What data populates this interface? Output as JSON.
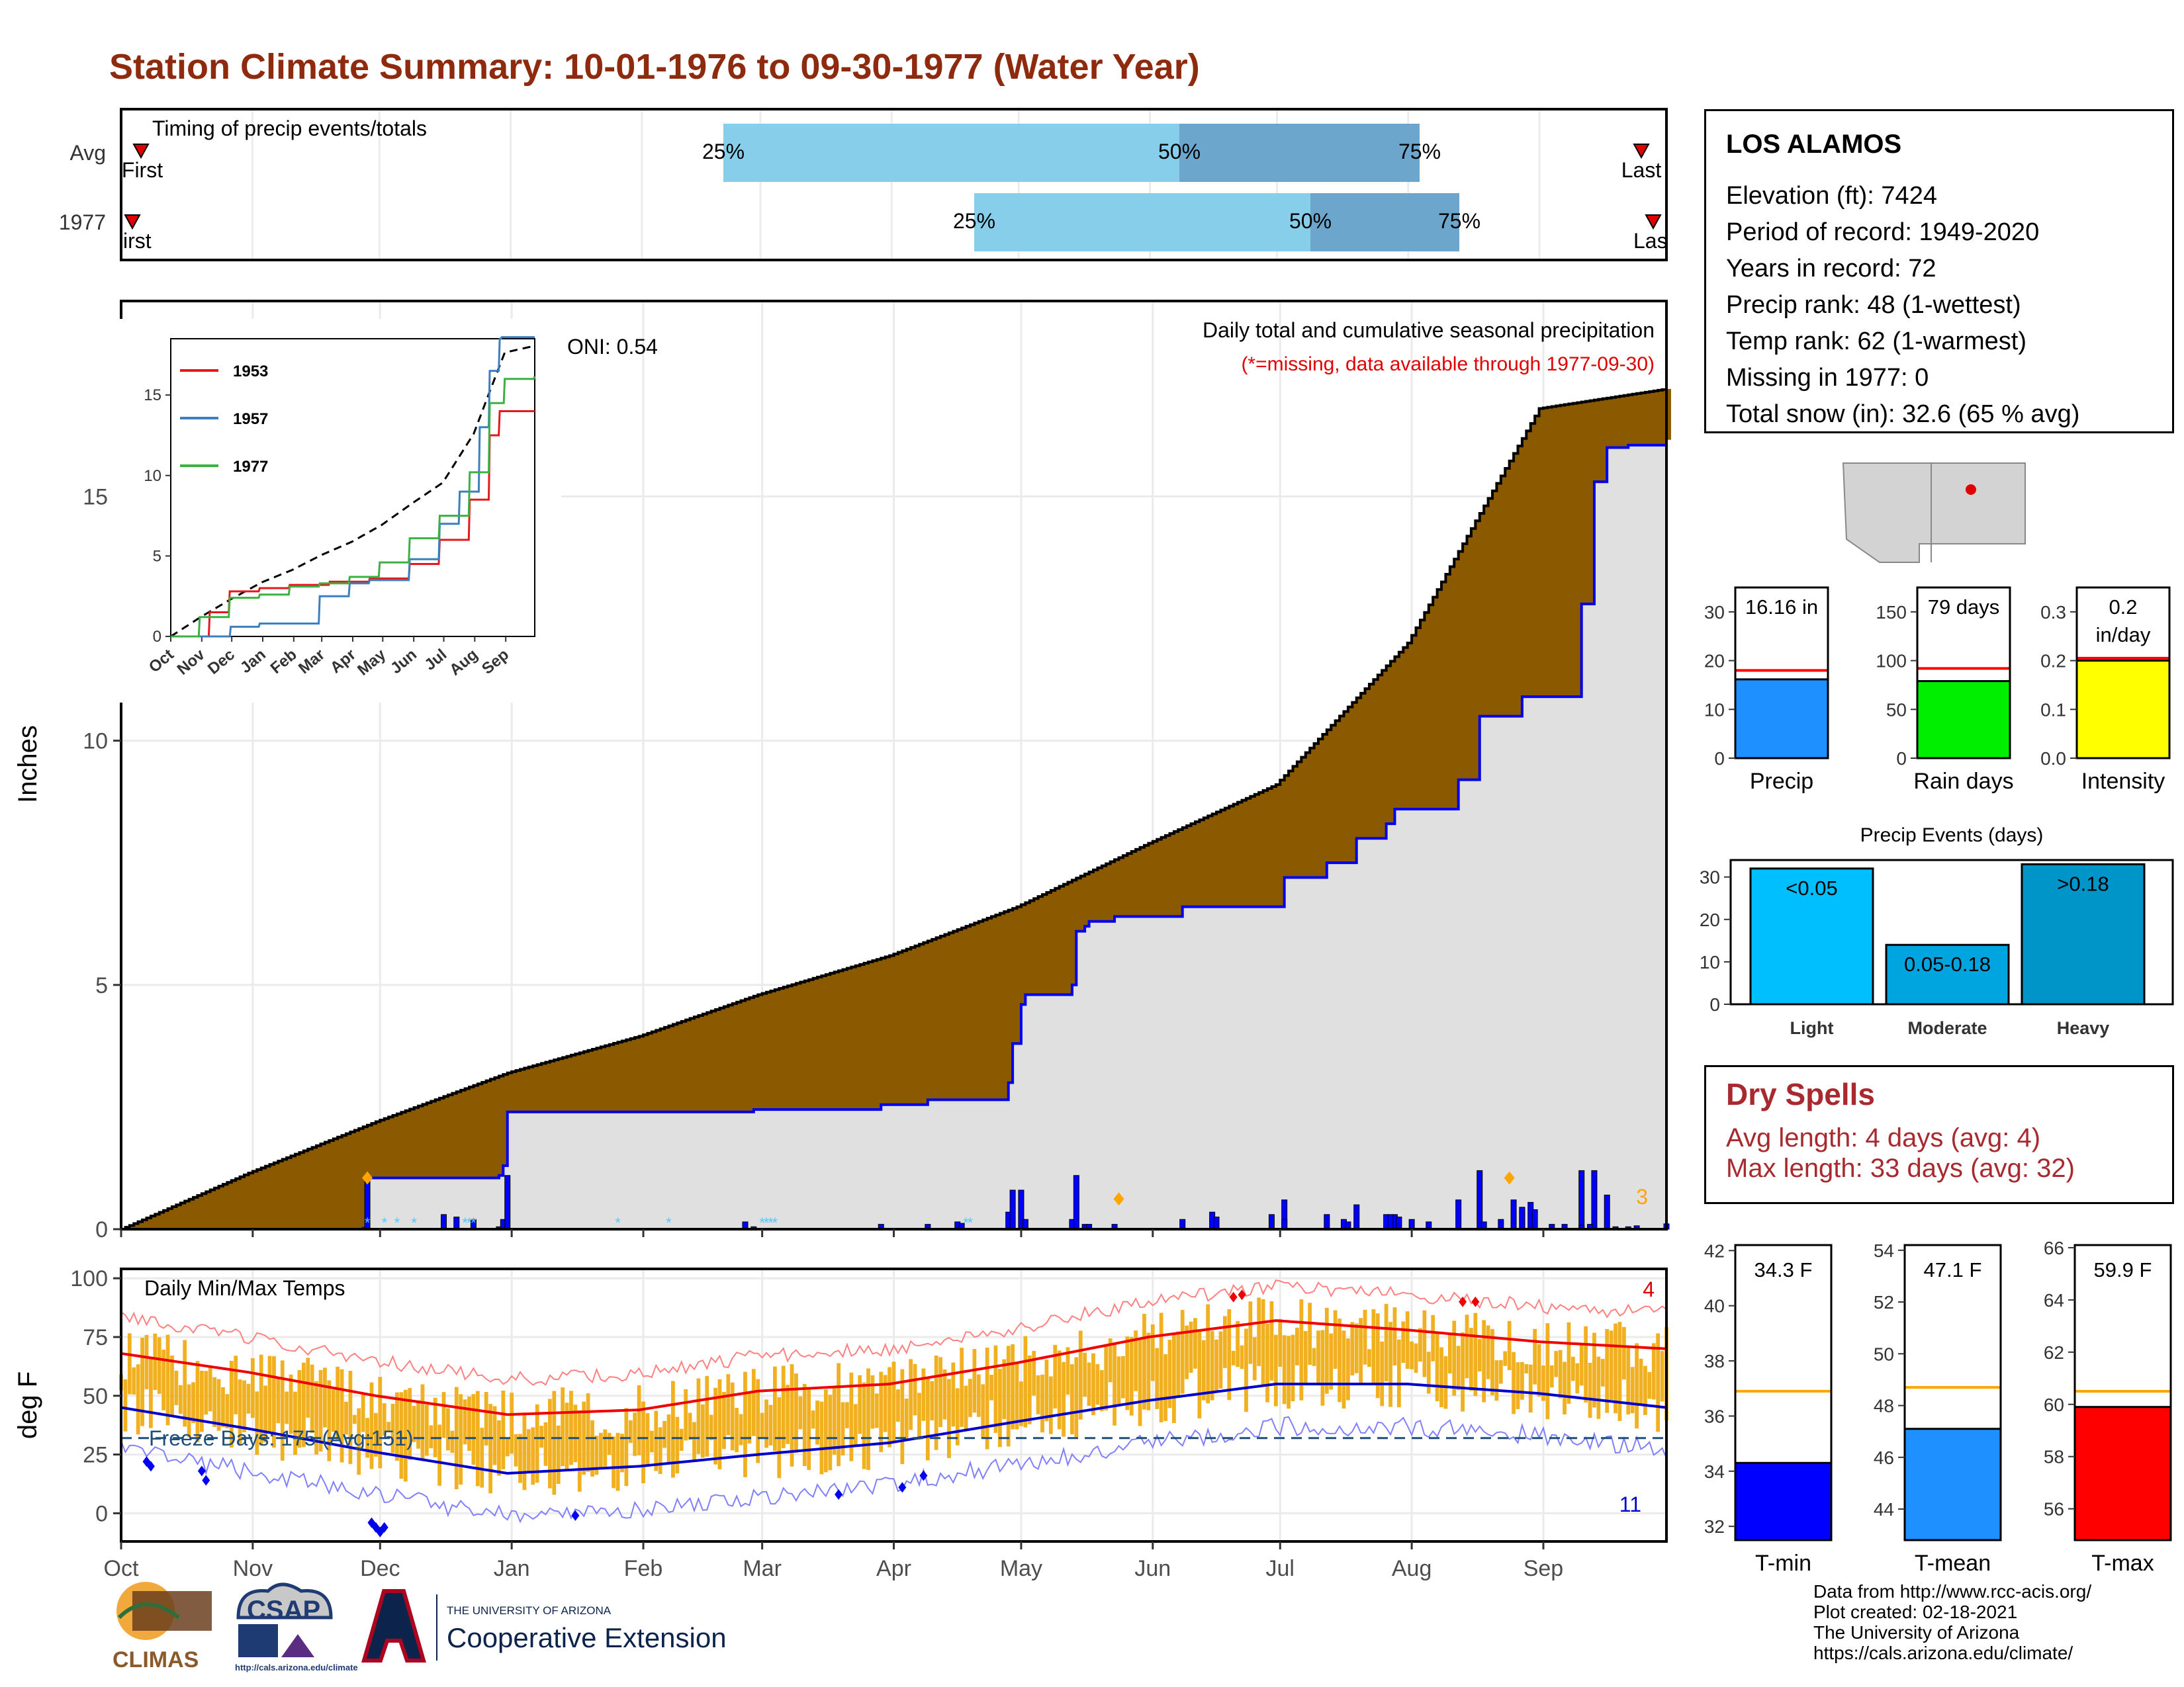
{
  "title": "Station Climate Summary: 10-01-1976 to 09-30-1977 (Water Year)",
  "station": {
    "name": "LOS ALAMOS",
    "lines": [
      "Elevation (ft): 7424",
      "Period of record: 1949-2020",
      "Years in record: 72",
      "Precip rank: 48 (1-wettest)",
      "Temp rank: 62 (1-warmest)",
      "Missing in 1977: 0",
      "Total snow (in): 32.6 (65 % avg)"
    ]
  },
  "timing_panel": {
    "title": "Timing of precip events/totals",
    "row_labels": [
      "Avg",
      "1977"
    ],
    "pct_labels": [
      "25%",
      "50%",
      "75%"
    ],
    "first_labels": [
      "First",
      "irst"
    ],
    "last_labels": [
      "Last",
      "Las"
    ],
    "colors": {
      "light": "#87ceeb",
      "dark": "#6ca6cd",
      "marker": "#e00000"
    }
  },
  "main_panel": {
    "ylabel": "Inches",
    "yticks": [
      "0",
      "5",
      "10",
      "15"
    ],
    "months": [
      "Oct",
      "Nov",
      "Dec",
      "Jan",
      "Feb",
      "Mar",
      "Apr",
      "May",
      "Jun",
      "Jul",
      "Aug",
      "Sep"
    ],
    "caption": "Daily total and cumulative seasonal precipitation",
    "missing_note": "(*=missing, data available through 1977-09-30)",
    "oni": "ONI: 0.54",
    "corner_count": "3",
    "colors": {
      "deficit": "#8b5a00",
      "surplus": "#1a7a1a",
      "area": "#e0e0e0",
      "line": "#0000ee",
      "avg": "#000000",
      "extreme": "#ffa500"
    }
  },
  "inset": {
    "legend": [
      "1953",
      "1957",
      "1977"
    ],
    "colors": [
      "#e31a1c",
      "#3b7fbf",
      "#3cb043"
    ],
    "yticks": [
      "0",
      "5",
      "10",
      "15"
    ],
    "months": [
      "Oct",
      "Nov",
      "Dec",
      "Jan",
      "Feb",
      "Mar",
      "Apr",
      "May",
      "Jun",
      "Jul",
      "Aug",
      "Sep"
    ]
  },
  "temp_panel": {
    "title": "Daily Min/Max Temps",
    "ylabel": "deg F",
    "yticks": [
      "0",
      "25",
      "50",
      "75",
      "100"
    ],
    "freeze": "Freeze Days: 175 (Avg:151)",
    "count_high": "4",
    "count_low": "11",
    "colors": {
      "bars": "#f0b020",
      "max": "#ee0000",
      "min": "#0000cc",
      "freeze": "#1f4e79"
    }
  },
  "summary_bars": {
    "precip": {
      "label": "Precip",
      "value_text": "16.16 in",
      "value": 16.16,
      "avg": 18,
      "ymax": 35,
      "yticks": [
        "0",
        "10",
        "20",
        "30"
      ],
      "color": "#1e90ff"
    },
    "rain_days": {
      "label": "Rain days",
      "value_text": "79 days",
      "value": 79,
      "avg": 92,
      "ymax": 175,
      "yticks": [
        "0",
        "50",
        "100",
        "150"
      ],
      "color": "#00ee00"
    },
    "intensity": {
      "label": "Intensity",
      "value_text": "0.2",
      "value_text2": "in/day",
      "value": 0.2,
      "avg": 0.205,
      "ymax": 0.35,
      "yticks": [
        "0.0",
        "0.1",
        "0.2",
        "0.3"
      ],
      "color": "#ffff00"
    }
  },
  "events": {
    "title": "Precip Events (days)",
    "categories": [
      "Light",
      "Moderate",
      "Heavy"
    ],
    "labels": [
      "<0.05",
      "0.05-0.18",
      ">0.18"
    ],
    "values": [
      32,
      14,
      33
    ],
    "yticks": [
      "0",
      "10",
      "20",
      "30"
    ],
    "colors": [
      "#00bfff",
      "#00a5e0",
      "#0095c8"
    ]
  },
  "dry_spells": {
    "title": "Dry Spells",
    "avg_length": "Avg length: 4 days (avg: 4)",
    "max_length": "Max length: 33 days (avg: 32)"
  },
  "temp_bars": {
    "tmin": {
      "label": "T-min",
      "value_text": "34.3 F",
      "value": 34.3,
      "avg": 36.9,
      "ymin": 31.5,
      "ymax": 42.2,
      "yticks": [
        "32",
        "34",
        "36",
        "38",
        "40",
        "42"
      ],
      "color": "#0000ff"
    },
    "tmean": {
      "label": "T-mean",
      "value_text": "47.1 F",
      "value": 47.1,
      "avg": 48.7,
      "ymin": 42.8,
      "ymax": 54.2,
      "yticks": [
        "44",
        "46",
        "48",
        "50",
        "52",
        "54"
      ],
      "color": "#1e90ff"
    },
    "tmax": {
      "label": "T-max",
      "value_text": "59.9 F",
      "value": 59.9,
      "avg": 60.5,
      "ymin": 54.8,
      "ymax": 66.1,
      "yticks": [
        "56",
        "58",
        "60",
        "62",
        "64",
        "66"
      ],
      "color": "#ff0000"
    }
  },
  "credits": [
    "Data from http://www.rcc-acis.org/",
    "Plot created: 02-18-2021",
    "The University of Arizona",
    "https://cals.arizona.edu/climate/"
  ],
  "logos": {
    "climas": "CLIMAS",
    "csap": "CSAP",
    "csap_url": "http://cals.arizona.edu/climate",
    "ua_small": "THE UNIVERSITY OF ARIZONA",
    "ua_big": "Cooperative Extension"
  },
  "chart_data": [
    {
      "type": "area",
      "title": "Daily total and cumulative seasonal precipitation",
      "ylabel": "Inches",
      "ylim": [
        0,
        19
      ],
      "x_unit": "day of water year",
      "series": [
        {
          "name": "cumulative",
          "x": [
            1,
            58,
            59,
            90,
            91,
            92,
            150,
            180,
            190,
            191,
            210,
            211,
            213,
            214,
            225,
            226,
            228,
            229,
            235,
            251,
            275,
            285,
            292,
            299,
            301,
            316,
            321,
            331,
            345,
            348,
            351,
            356,
            365
          ],
          "y": [
            0,
            0.02,
            1.05,
            1.1,
            1.3,
            2.4,
            2.45,
            2.55,
            2.55,
            2.65,
            3.0,
            3.8,
            4.6,
            4.8,
            5.0,
            6.1,
            6.2,
            6.3,
            6.4,
            6.6,
            7.2,
            7.5,
            8.0,
            8.3,
            8.6,
            9.2,
            10.5,
            10.9,
            12.8,
            15.3,
            16.0,
            16.05,
            16.16
          ]
        },
        {
          "x": [
            1,
            31,
            61,
            92,
            123,
            151,
            182,
            212,
            243,
            273,
            304,
            320,
            335,
            365
          ],
          "y": [
            0,
            1.15,
            2.2,
            3.2,
            3.95,
            4.8,
            5.6,
            6.6,
            7.9,
            9.1,
            12.0,
            14.5,
            16.8,
            17.2
          ]
        }
      ]
    },
    {
      "type": "bar",
      "title": "Precip Events (days)",
      "categories": [
        "Light",
        "Moderate",
        "Heavy"
      ],
      "values": [
        32,
        14,
        33
      ]
    },
    {
      "type": "bar",
      "categories": [
        "Precip",
        "Rain days",
        "Intensity"
      ],
      "values": [
        16.16,
        79,
        0.2
      ]
    },
    {
      "type": "bar",
      "categories": [
        "T-min",
        "T-mean",
        "T-max"
      ],
      "values": [
        34.3,
        47.1,
        59.9
      ]
    },
    {
      "type": "line",
      "title": "Daily Min/Max Temps",
      "ylabel": "deg F",
      "ylim": [
        -12,
        104
      ],
      "series": [
        {
          "x": [
            1,
            31,
            61,
            92,
            123,
            151,
            182,
            212,
            243,
            273,
            304,
            335,
            365
          ],
          "y": [
            68,
            60,
            50,
            42,
            44,
            52,
            55,
            64,
            75,
            82,
            78,
            73,
            70
          ]
        },
        {
          "x": [
            1,
            31,
            61,
            92,
            123,
            151,
            182,
            212,
            243,
            273,
            304,
            335,
            365
          ],
          "y": [
            45,
            36,
            26,
            17,
            20,
            25,
            30,
            39,
            48,
            55,
            55,
            51,
            45
          ]
        }
      ]
    }
  ]
}
